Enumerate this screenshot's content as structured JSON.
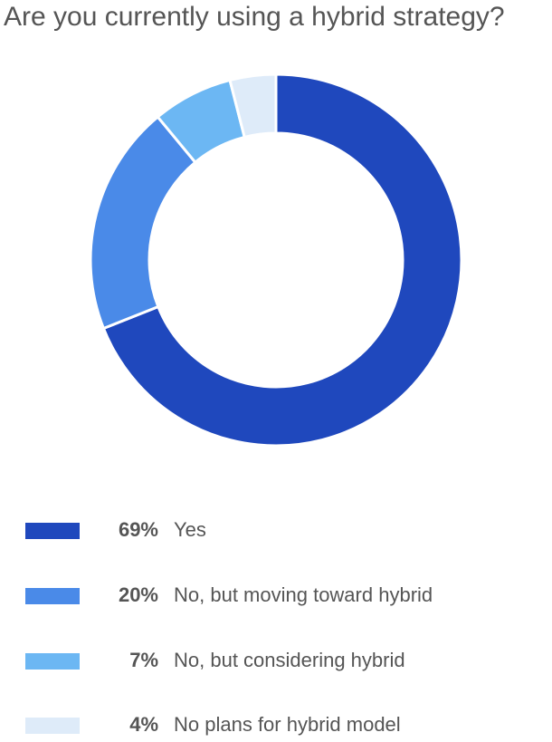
{
  "chart_data": {
    "type": "donut",
    "title": "Are you currently using a hybrid strategy?",
    "categories": [
      "Yes",
      "No, but moving toward hybrid",
      "No, but considering hybrid",
      "No plans for hybrid model"
    ],
    "values": [
      69,
      20,
      7,
      4
    ],
    "value_labels": [
      "69%",
      "20%",
      "7%",
      "4%"
    ],
    "colors": [
      "#1f48bd",
      "#4a8ae8",
      "#6cb7f3",
      "#deebf9"
    ]
  }
}
